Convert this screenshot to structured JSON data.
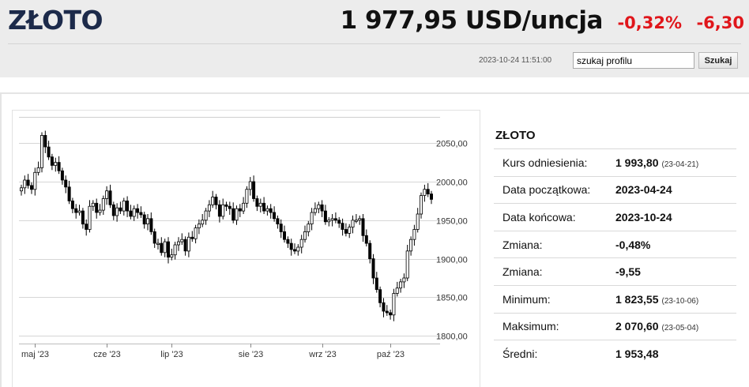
{
  "header": {
    "asset_name": "ZŁOTO",
    "price": "1 977,95 USD/uncja",
    "change_percent": "-0,32%",
    "change_value": "-6,30",
    "change_color": "#e0161b",
    "timestamp": "2023-10-24 11:51:00",
    "search_placeholder": "szukaj profilu",
    "search_value": "szukaj profilu",
    "search_button": "Szukaj"
  },
  "info": {
    "title": "ZŁOTO",
    "rows": [
      {
        "label": "Kurs odniesienia:",
        "value": "1 993,80",
        "date": "(23-04-21)"
      },
      {
        "label": "Data początkowa:",
        "value": "2023-04-24",
        "date": ""
      },
      {
        "label": "Data końcowa:",
        "value": "2023-10-24",
        "date": ""
      },
      {
        "label": "Zmiana:",
        "value": "-0,48%",
        "date": ""
      },
      {
        "label": "Zmiana:",
        "value": "-9,55",
        "date": ""
      },
      {
        "label": "Minimum:",
        "value": "1 823,55",
        "date": "(23-10-06)"
      },
      {
        "label": "Maksimum:",
        "value": "2 070,60",
        "date": "(23-05-04)"
      },
      {
        "label": "Średni:",
        "value": "1 953,48",
        "date": ""
      }
    ]
  },
  "chart_data": {
    "type": "candlestick",
    "ylim": [
      1790,
      2085
    ],
    "y_ticks": [
      "1800,00",
      "1850,00",
      "1900,00",
      "1950,00",
      "2000,00",
      "2050,00"
    ],
    "y_tick_values": [
      1800,
      1850,
      1900,
      1950,
      2000,
      2050
    ],
    "x_labels": [
      "maj '23",
      "cze '23",
      "lip '23",
      "sie '23",
      "wrz '23",
      "paź '23"
    ],
    "x_label_index": [
      4,
      25,
      44,
      67,
      88,
      108
    ],
    "grid": true,
    "closes": [
      1992,
      2002,
      1995,
      1990,
      2012,
      2018,
      2060,
      2045,
      2032,
      2021,
      2025,
      2014,
      2002,
      1993,
      1975,
      1965,
      1960,
      1962,
      1945,
      1938,
      1968,
      1972,
      1960,
      1963,
      1978,
      1988,
      1970,
      1956,
      1966,
      1962,
      1975,
      1962,
      1955,
      1965,
      1960,
      1957,
      1945,
      1952,
      1935,
      1920,
      1920,
      1908,
      1922,
      1902,
      1905,
      1918,
      1922,
      1925,
      1910,
      1928,
      1926,
      1940,
      1945,
      1950,
      1962,
      1970,
      1980,
      1970,
      1955,
      1970,
      1968,
      1965,
      1950,
      1965,
      1962,
      1972,
      1990,
      2000,
      1978,
      1968,
      1972,
      1962,
      1965,
      1960,
      1952,
      1945,
      1935,
      1925,
      1920,
      1912,
      1910,
      1915,
      1925,
      1935,
      1945,
      1960,
      1965,
      1970,
      1962,
      1948,
      1950,
      1952,
      1950,
      1946,
      1938,
      1933,
      1941,
      1950,
      1950,
      1952,
      1930,
      1920,
      1900,
      1875,
      1860,
      1843,
      1832,
      1830,
      1827,
      1855,
      1862,
      1870,
      1875,
      1910,
      1925,
      1938,
      1958,
      1982,
      1990,
      1984,
      1977
    ]
  }
}
